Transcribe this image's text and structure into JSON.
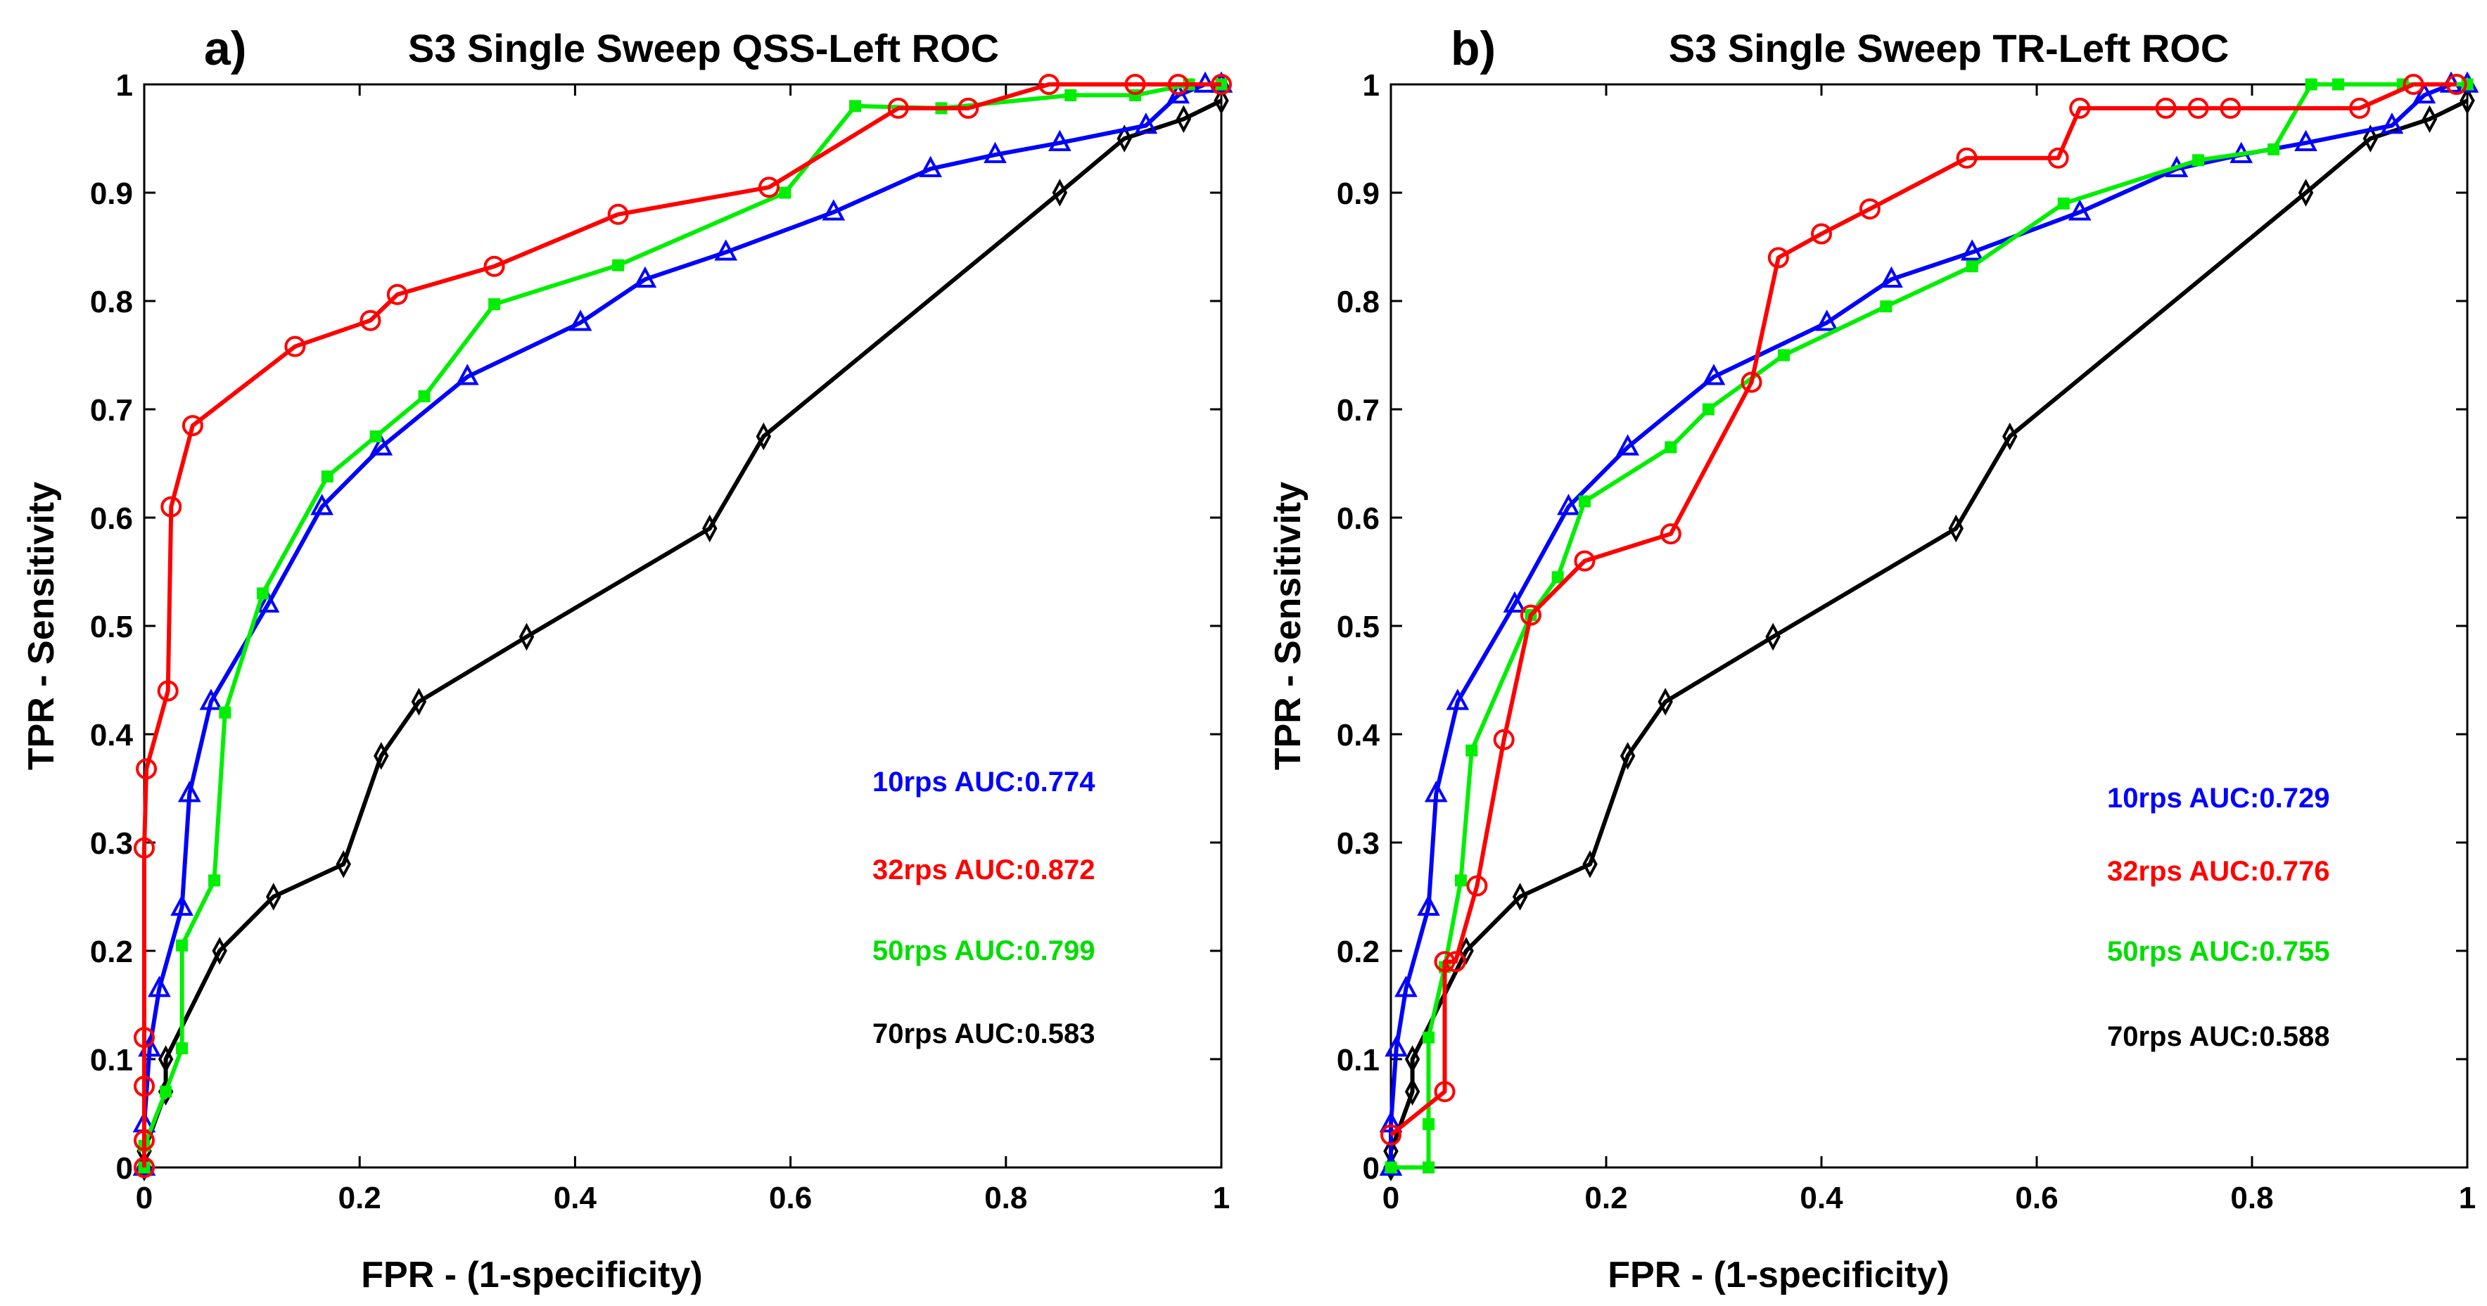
{
  "chart_data": [
    {
      "type": "line",
      "panel_label": "a)",
      "title": "S3 Single Sweep QSS-Left ROC",
      "xlabel": "FPR -  (1-specificity)",
      "ylabel": "TPR -  Sensitivity",
      "xlim": [
        0,
        1
      ],
      "ylim": [
        0,
        1
      ],
      "xticks": [
        "0",
        "0.2",
        "0.4",
        "0.6",
        "0.8",
        "1"
      ],
      "yticks": [
        "0",
        "0.1",
        "0.2",
        "0.3",
        "0.4",
        "0.5",
        "0.6",
        "0.7",
        "0.8",
        "0.9",
        "1"
      ],
      "series": [
        {
          "name": "10rps",
          "color": "#0000ff",
          "marker": "triangle",
          "x": [
            0,
            0,
            0.005,
            0.014,
            0.035,
            0.042,
            0.062,
            0.115,
            0.165,
            0.22,
            0.3,
            0.405,
            0.465,
            0.54,
            0.64,
            0.73,
            0.79,
            0.85,
            0.93,
            0.96,
            0.985,
            1
          ],
          "y": [
            0,
            0.04,
            0.11,
            0.165,
            0.24,
            0.345,
            0.43,
            0.52,
            0.61,
            0.665,
            0.73,
            0.78,
            0.82,
            0.845,
            0.882,
            0.922,
            0.935,
            0.946,
            0.962,
            0.99,
            1,
            1
          ]
        },
        {
          "name": "32rps",
          "color": "#ff0000",
          "marker": "circle",
          "x": [
            0,
            0,
            0,
            0,
            0,
            0.002,
            0.022,
            0.025,
            0.045,
            0.14,
            0.21,
            0.235,
            0.325,
            0.44,
            0.58,
            0.7,
            0.765,
            0.84,
            0.92,
            0.96,
            1
          ],
          "y": [
            0,
            0.025,
            0.075,
            0.12,
            0.295,
            0.368,
            0.44,
            0.61,
            0.685,
            0.758,
            0.782,
            0.806,
            0.832,
            0.88,
            0.905,
            0.978,
            0.978,
            1,
            1,
            1,
            1
          ]
        },
        {
          "name": "50rps",
          "color": "#00ee00",
          "marker": "square",
          "x": [
            0,
            0,
            0.02,
            0.035,
            0.035,
            0.065,
            0.075,
            0.11,
            0.17,
            0.215,
            0.26,
            0.325,
            0.44,
            0.595,
            0.66,
            0.74,
            0.86,
            0.92,
            0.97,
            1
          ],
          "y": [
            0,
            0.02,
            0.07,
            0.11,
            0.205,
            0.265,
            0.42,
            0.53,
            0.638,
            0.675,
            0.712,
            0.797,
            0.833,
            0.9,
            0.98,
            0.978,
            0.99,
            0.99,
            1,
            1
          ]
        },
        {
          "name": "70rps",
          "color": "#000000",
          "marker": "diamond",
          "x": [
            0,
            0,
            0.02,
            0.02,
            0.07,
            0.12,
            0.185,
            0.22,
            0.255,
            0.355,
            0.525,
            0.575,
            0.85,
            0.91,
            0.965,
            1
          ],
          "y": [
            0,
            0.015,
            0.07,
            0.1,
            0.2,
            0.25,
            0.28,
            0.38,
            0.43,
            0.49,
            0.59,
            0.675,
            0.9,
            0.95,
            0.968,
            0.985
          ]
        }
      ],
      "auc_labels": [
        {
          "text": "10rps AUC:0.774",
          "color": "#0000ff"
        },
        {
          "text": "32rps AUC:0.872",
          "color": "#ff0000"
        },
        {
          "text": "50rps AUC:0.799",
          "color": "#00dd00"
        },
        {
          "text": "70rps AUC:0.583",
          "color": "#000000"
        }
      ]
    },
    {
      "type": "line",
      "panel_label": "b)",
      "title": "S3 Single Sweep TR-Left ROC",
      "xlabel": "FPR -  (1-specificity)",
      "ylabel": "TPR -  Sensitivity",
      "xlim": [
        0,
        1
      ],
      "ylim": [
        0,
        1
      ],
      "xticks": [
        "0",
        "0.2",
        "0.4",
        "0.6",
        "0.8",
        "1"
      ],
      "yticks": [
        "0",
        "0.1",
        "0.2",
        "0.3",
        "0.4",
        "0.5",
        "0.6",
        "0.7",
        "0.8",
        "0.9",
        "1"
      ],
      "series": [
        {
          "name": "10rps",
          "color": "#0000ff",
          "marker": "triangle",
          "x": [
            0,
            0,
            0.005,
            0.014,
            0.035,
            0.042,
            0.062,
            0.115,
            0.165,
            0.22,
            0.3,
            0.405,
            0.465,
            0.54,
            0.64,
            0.73,
            0.79,
            0.85,
            0.93,
            0.96,
            0.985,
            1
          ],
          "y": [
            0,
            0.04,
            0.11,
            0.165,
            0.24,
            0.345,
            0.43,
            0.52,
            0.61,
            0.665,
            0.73,
            0.78,
            0.82,
            0.845,
            0.882,
            0.922,
            0.935,
            0.946,
            0.962,
            0.99,
            1,
            1
          ]
        },
        {
          "name": "32rps",
          "color": "#ff0000",
          "marker": "circle",
          "x": [
            0,
            0.05,
            0.05,
            0.06,
            0.08,
            0.105,
            0.13,
            0.18,
            0.26,
            0.335,
            0.36,
            0.4,
            0.445,
            0.535,
            0.62,
            0.64,
            0.72,
            0.75,
            0.78,
            0.9,
            0.95,
            0.99
          ],
          "y": [
            0.03,
            0.07,
            0.19,
            0.19,
            0.26,
            0.395,
            0.51,
            0.56,
            0.585,
            0.725,
            0.84,
            0.862,
            0.885,
            0.932,
            0.932,
            0.978,
            0.978,
            0.978,
            0.978,
            0.978,
            1,
            1
          ]
        },
        {
          "name": "50rps",
          "color": "#00ee00",
          "marker": "square",
          "x": [
            0,
            0.035,
            0.035,
            0.035,
            0.05,
            0.065,
            0.075,
            0.13,
            0.155,
            0.18,
            0.26,
            0.295,
            0.365,
            0.46,
            0.54,
            0.625,
            0.75,
            0.82,
            0.855,
            0.88,
            0.94,
            1
          ],
          "y": [
            0,
            0,
            0.04,
            0.12,
            0.185,
            0.265,
            0.385,
            0.51,
            0.545,
            0.615,
            0.665,
            0.7,
            0.75,
            0.795,
            0.832,
            0.89,
            0.93,
            0.94,
            1,
            1,
            1,
            1
          ]
        },
        {
          "name": "70rps",
          "color": "#000000",
          "marker": "diamond",
          "x": [
            0,
            0,
            0.02,
            0.02,
            0.07,
            0.12,
            0.185,
            0.22,
            0.255,
            0.355,
            0.525,
            0.575,
            0.85,
            0.91,
            0.965,
            1
          ],
          "y": [
            0,
            0.015,
            0.07,
            0.1,
            0.2,
            0.25,
            0.28,
            0.38,
            0.43,
            0.49,
            0.59,
            0.675,
            0.9,
            0.95,
            0.968,
            0.985
          ]
        }
      ],
      "auc_labels": [
        {
          "text": "10rps  AUC:0.729",
          "color": "#0000ff"
        },
        {
          "text": "32rps AUC:0.776",
          "color": "#ff0000"
        },
        {
          "text": "50rps AUC:0.755",
          "color": "#00dd00"
        },
        {
          "text": "70rps AUC:0.588",
          "color": "#000000"
        }
      ]
    }
  ]
}
